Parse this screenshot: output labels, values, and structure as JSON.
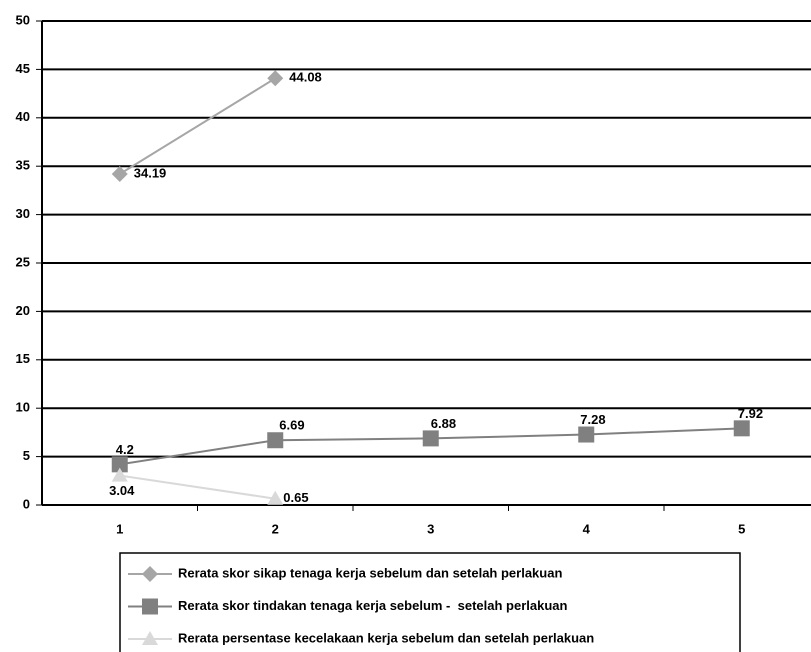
{
  "chart_data": {
    "type": "line",
    "categories": [
      "1",
      "2",
      "3",
      "4",
      "5"
    ],
    "series": [
      {
        "name": "Rerata skor sikap tenaga kerja sebelum dan setelah perlakuan",
        "color": "#a6a6a6",
        "marker": "diamond",
        "values": [
          34.19,
          44.08,
          null,
          null,
          null
        ]
      },
      {
        "name": "Rerata skor tindakan tenaga kerja sebelum -  setelah perlakuan",
        "color": "#808080",
        "marker": "square",
        "values": [
          4.2,
          6.69,
          6.88,
          7.28,
          7.92
        ]
      },
      {
        "name": "Rerata persentase kecelakaan kerja sebelum dan setelah perlakuan",
        "color": "#d9d9d9",
        "marker": "triangle",
        "values": [
          3.04,
          0.65,
          null,
          null,
          null
        ]
      }
    ],
    "ylim": [
      0,
      50
    ],
    "yticks": [
      0,
      5,
      10,
      15,
      20,
      25,
      30,
      35,
      40,
      45,
      50
    ],
    "grid": true,
    "legend": "bottom"
  }
}
